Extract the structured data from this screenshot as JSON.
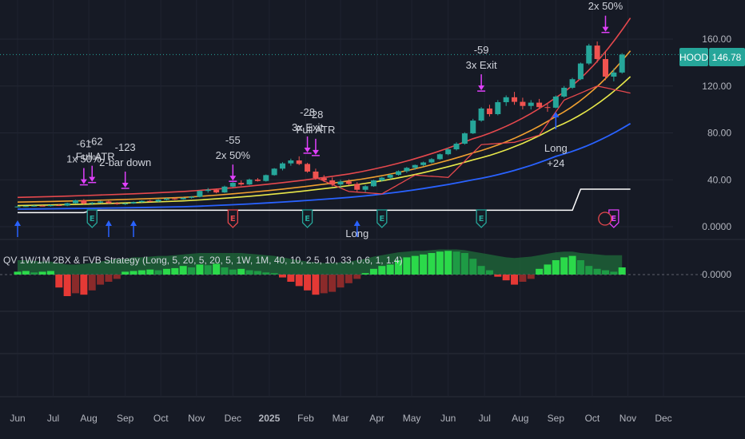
{
  "symbol": {
    "ticker": "HOOD",
    "last_price": "146.78"
  },
  "legend": {
    "text": "QV 1W/1M 2BX & FVB Strategy (Long, 5, 20, 5, 20, 5, 1W, 1M, 40, 10, 2.5, 10, 33, 0.6, 1, 1.4)"
  },
  "colors": {
    "background": "#161a25",
    "up": "#26a69a",
    "down": "#ef5350",
    "upper_band": "#e5484d",
    "mid_band": "#f0a030",
    "fast_ma": "#e8e84a",
    "slow_ma": "#2962ff",
    "stop_line": "#ffffff",
    "exit_marker": "#e040fb",
    "entry_arrow": "#2962ff",
    "hist_green_strong": "#2bd94a",
    "hist_green_weak": "#1e9b45",
    "hist_red_strong": "#e53935",
    "hist_red_weak": "#8b2a2a"
  },
  "chart_data": {
    "type": "candlestick",
    "x_axis": {
      "labels": [
        "Jun",
        "Jul",
        "Aug",
        "Sep",
        "Oct",
        "Nov",
        "Dec",
        "2025",
        "Feb",
        "Mar",
        "Apr",
        "May",
        "Jun",
        "Jul",
        "Aug",
        "Sep",
        "Oct",
        "Nov",
        "Dec"
      ],
      "label_weeks": [
        0,
        4.3,
        8.6,
        13,
        17.3,
        21.6,
        26,
        30.4,
        34.8,
        39,
        43.4,
        47.6,
        52,
        56.4,
        60.7,
        65,
        69.4,
        73.7,
        78
      ]
    },
    "price_axis": {
      "ticks": [
        "160.00",
        "120.00",
        "80.00",
        "40.00",
        "0.0000"
      ],
      "tick_values": [
        160,
        120,
        80,
        40,
        0
      ],
      "range": [
        -10,
        190
      ]
    },
    "oscillator_axis": {
      "ticks": [
        "0.0000"
      ],
      "tick_values": [
        0
      ],
      "range": [
        -50,
        60
      ]
    },
    "candles": [
      [
        0,
        17,
        17.6,
        16.5,
        17.2
      ],
      [
        1,
        17.2,
        17.8,
        16.8,
        17.5
      ],
      [
        2,
        17.5,
        18.3,
        17.0,
        17.9
      ],
      [
        3,
        17.9,
        18.4,
        17.3,
        17.6
      ],
      [
        4,
        17.6,
        18.8,
        17.2,
        18.4
      ],
      [
        5,
        18.4,
        19.2,
        17.8,
        18.0
      ],
      [
        6,
        18.0,
        20.5,
        17.5,
        20.0
      ],
      [
        7,
        20.0,
        23.0,
        19.5,
        22.5
      ],
      [
        8,
        22.5,
        23.5,
        19.0,
        19.8
      ],
      [
        9,
        19.8,
        21.0,
        18.5,
        20.5
      ],
      [
        10,
        20.5,
        22.0,
        20.0,
        21.5
      ],
      [
        11,
        21.5,
        22.2,
        19.5,
        20.0
      ],
      [
        12,
        20.0,
        21.0,
        18.8,
        19.2
      ],
      [
        13,
        19.2,
        20.2,
        18.5,
        19.8
      ],
      [
        14,
        19.8,
        21.5,
        19.5,
        21.0
      ],
      [
        15,
        21.0,
        22.5,
        20.5,
        22.0
      ],
      [
        16,
        22.0,
        22.8,
        21.0,
        21.5
      ],
      [
        17,
        21.5,
        23.5,
        21.0,
        23.0
      ],
      [
        18,
        23.0,
        24.5,
        22.5,
        24.0
      ],
      [
        19,
        24.0,
        24.8,
        22.8,
        23.4
      ],
      [
        20,
        23.4,
        25.0,
        23.0,
        24.6
      ],
      [
        21,
        24.6,
        26.0,
        24.0,
        25.5
      ],
      [
        22,
        25.5,
        31.0,
        25.0,
        30.5
      ],
      [
        23,
        30.5,
        33.0,
        29.0,
        31.5
      ],
      [
        24,
        31.5,
        32.5,
        28.5,
        29.2
      ],
      [
        25,
        29.2,
        35.0,
        28.8,
        34.2
      ],
      [
        26,
        34.2,
        38.0,
        33.5,
        37.4
      ],
      [
        27,
        37.4,
        39.5,
        35.0,
        36.0
      ],
      [
        28,
        36.0,
        41.0,
        35.5,
        40.2
      ],
      [
        29,
        40.2,
        41.5,
        38.5,
        39.0
      ],
      [
        30,
        39.0,
        44.5,
        38.5,
        44.0
      ],
      [
        31,
        44.0,
        50.0,
        43.5,
        49.5
      ],
      [
        32,
        49.5,
        55.0,
        48.0,
        54.0
      ],
      [
        33,
        54.0,
        58.0,
        52.0,
        56.5
      ],
      [
        34,
        56.5,
        60.0,
        52.5,
        53.5
      ],
      [
        35,
        53.5,
        54.5,
        46.0,
        47.0
      ],
      [
        36,
        47.0,
        49.5,
        40.0,
        41.5
      ],
      [
        37,
        41.5,
        44.0,
        38.0,
        39.5
      ],
      [
        38,
        39.5,
        42.0,
        34.5,
        36.0
      ],
      [
        39,
        36.0,
        40.0,
        33.0,
        38.5
      ],
      [
        40,
        38.5,
        40.5,
        35.5,
        36.5
      ],
      [
        41,
        36.5,
        38.0,
        30.0,
        31.5
      ],
      [
        42,
        31.5,
        35.5,
        29.5,
        34.5
      ],
      [
        43,
        34.5,
        40.0,
        34.0,
        39.5
      ],
      [
        44,
        39.5,
        42.5,
        38.5,
        41.8
      ],
      [
        45,
        41.8,
        45.0,
        40.5,
        44.2
      ],
      [
        46,
        44.2,
        48.0,
        43.5,
        47.3
      ],
      [
        47,
        47.3,
        51.0,
        46.0,
        50.2
      ],
      [
        48,
        50.2,
        53.0,
        48.5,
        52.6
      ],
      [
        49,
        52.6,
        55.5,
        51.5,
        54.8
      ],
      [
        50,
        54.8,
        58.5,
        54.0,
        57.6
      ],
      [
        51,
        57.6,
        62.5,
        57.0,
        61.8
      ],
      [
        52,
        61.8,
        67.0,
        61.0,
        66.0
      ],
      [
        53,
        66.0,
        72.0,
        65.0,
        70.8
      ],
      [
        54,
        70.8,
        80.5,
        70.0,
        79.6
      ],
      [
        55,
        79.6,
        92.0,
        79.0,
        90.5
      ],
      [
        56,
        90.5,
        102.0,
        89.5,
        100.8
      ],
      [
        57,
        100.8,
        104.0,
        94.0,
        96.0
      ],
      [
        58,
        96.0,
        108.0,
        95.0,
        106.2
      ],
      [
        59,
        106.2,
        112.0,
        103.0,
        110.4
      ],
      [
        60,
        110.4,
        115.0,
        104.0,
        106.5
      ],
      [
        61,
        106.5,
        110.0,
        100.0,
        103.0
      ],
      [
        62,
        103.0,
        108.0,
        100.0,
        105.8
      ],
      [
        63,
        105.8,
        109.0,
        100.5,
        102.0
      ],
      [
        64,
        102.0,
        104.5,
        98.0,
        101.5
      ],
      [
        65,
        101.5,
        112.0,
        101.0,
        111.0
      ],
      [
        66,
        111.0,
        120.0,
        110.0,
        118.5
      ],
      [
        67,
        118.5,
        127.0,
        117.5,
        125.8
      ],
      [
        68,
        125.8,
        140.0,
        125.0,
        139.2
      ],
      [
        69,
        139.2,
        156.0,
        138.0,
        154.5
      ],
      [
        70,
        154.5,
        158.0,
        140.0,
        143.0
      ],
      [
        71,
        143.0,
        150.0,
        125.0,
        128.0
      ],
      [
        72,
        128.0,
        135.0,
        124.0,
        131.5
      ],
      [
        73,
        131.5,
        148.0,
        130.5,
        146.78
      ]
    ],
    "lines": {
      "upper_band": [
        [
          0,
          25
        ],
        [
          20,
          30
        ],
        [
          40,
          45
        ],
        [
          55,
          75
        ],
        [
          65,
          110
        ],
        [
          74,
          178
        ]
      ],
      "mid_band": [
        [
          0,
          21
        ],
        [
          20,
          25
        ],
        [
          40,
          39
        ],
        [
          55,
          63
        ],
        [
          65,
          94
        ],
        [
          74,
          150
        ]
      ],
      "fast_ma": [
        [
          0,
          18
        ],
        [
          20,
          22
        ],
        [
          40,
          35
        ],
        [
          55,
          57
        ],
        [
          65,
          85
        ],
        [
          74,
          128
        ]
      ],
      "slow_ma": [
        [
          0,
          15
        ],
        [
          20,
          17
        ],
        [
          40,
          25
        ],
        [
          55,
          40
        ],
        [
          65,
          60
        ],
        [
          74,
          88
        ]
      ],
      "stop_line": [
        [
          0,
          12
        ],
        [
          8,
          12
        ],
        [
          9,
          14
        ],
        [
          67,
          14
        ],
        [
          68,
          32
        ],
        [
          74,
          32
        ]
      ],
      "trail_stop": [
        [
          36,
          42
        ],
        [
          40,
          30
        ],
        [
          44,
          28
        ],
        [
          48,
          44
        ],
        [
          52,
          42
        ],
        [
          56,
          70
        ],
        [
          60,
          72
        ],
        [
          63,
          78
        ],
        [
          66,
          108
        ],
        [
          70,
          120
        ],
        [
          74,
          114
        ]
      ]
    },
    "annotations": [
      {
        "week": 8,
        "texts": [
          "-61",
          "1x 50%"
        ]
      },
      {
        "week": 9,
        "texts": [
          "-62",
          "Full ATR"
        ]
      },
      {
        "week": 13,
        "texts": [
          "-123",
          "2-bar down"
        ]
      },
      {
        "week": 26,
        "texts": [
          "-55",
          "2x 50%"
        ]
      },
      {
        "week": 35,
        "texts": [
          "-28",
          "3x Exit"
        ]
      },
      {
        "week": 36,
        "texts": [
          "-28",
          "Full ATR"
        ]
      },
      {
        "week": 56,
        "texts": [
          "-59",
          "3x Exit"
        ]
      },
      {
        "week": 71,
        "texts": [
          "2x 50%"
        ]
      },
      {
        "week": 65,
        "texts": [
          "Long",
          "+24"
        ]
      },
      {
        "week": 41,
        "texts": [
          "Long"
        ]
      }
    ],
    "exit_markers": [
      {
        "week": 8,
        "price": 35
      },
      {
        "week": 9,
        "price": 37
      },
      {
        "week": 13,
        "price": 32
      },
      {
        "week": 26,
        "price": 38
      },
      {
        "week": 35,
        "price": 62
      },
      {
        "week": 36,
        "price": 60
      },
      {
        "week": 56,
        "price": 115
      },
      {
        "week": 71,
        "price": 165
      }
    ],
    "entry_arrows": [
      {
        "week": 0
      },
      {
        "week": 11
      },
      {
        "week": 14
      },
      {
        "week": 41
      },
      {
        "week": 65,
        "on_price": true
      }
    ],
    "earnings_markers": [
      {
        "week": 9,
        "kind": "E"
      },
      {
        "week": 26,
        "kind": "E-red"
      },
      {
        "week": 35,
        "kind": "E"
      },
      {
        "week": 44,
        "kind": "E"
      },
      {
        "week": 56,
        "kind": "E"
      },
      {
        "week": 72,
        "kind": "E-purple"
      }
    ],
    "oscillator": [
      4,
      5,
      3,
      4,
      5,
      -18,
      -30,
      -26,
      -28,
      -22,
      -14,
      -10,
      -6,
      4,
      5,
      6,
      7,
      6,
      8,
      9,
      12,
      10,
      14,
      13,
      15,
      10,
      7,
      8,
      6,
      5,
      3,
      2,
      -4,
      -10,
      -16,
      -22,
      -28,
      -26,
      -24,
      -18,
      -12,
      -6,
      2,
      8,
      12,
      14,
      20,
      24,
      26,
      28,
      30,
      32,
      33,
      32,
      30,
      22,
      12,
      6,
      -3,
      -8,
      -14,
      -10,
      -6,
      8,
      14,
      20,
      24,
      26,
      20,
      12,
      8,
      6,
      4,
      10
    ],
    "oscillator_cloud": [
      20,
      20,
      19,
      18,
      18,
      16,
      14,
      14,
      15,
      16,
      18,
      20,
      22,
      22,
      24,
      24,
      25,
      26,
      26,
      27,
      28,
      29,
      30,
      30,
      30,
      30,
      30,
      30,
      29,
      28,
      27,
      26,
      24,
      22,
      20,
      18,
      17,
      16,
      16,
      17,
      18,
      20,
      22,
      25,
      27,
      29,
      31,
      32,
      33,
      33,
      34,
      35,
      35,
      35,
      34,
      32,
      30,
      28,
      26,
      24,
      23,
      24,
      25,
      27,
      29,
      31,
      32,
      32,
      30,
      29,
      28,
      27,
      27,
      27
    ]
  }
}
